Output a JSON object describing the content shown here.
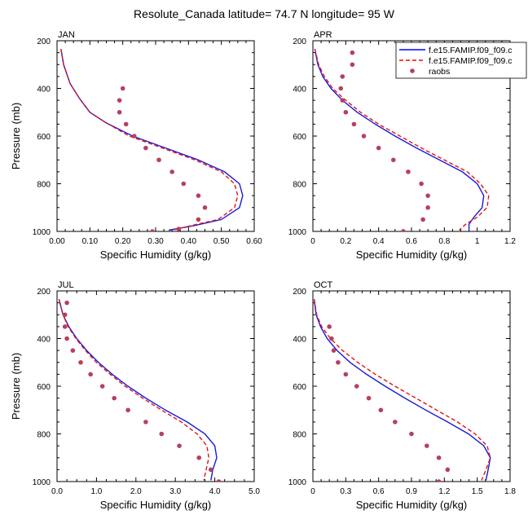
{
  "figure_title": "Resolute_Canada  latitude= 74.7 N longitude= 95 W",
  "legend": {
    "entries": [
      {
        "label": "f.e15.FAMIP.f09_f09.c",
        "style": "solid",
        "color": "#0000ff"
      },
      {
        "label": "f.e15.FAMIP.f09_f09.c",
        "style": "dashed",
        "color": "#ff0000"
      },
      {
        "label": "raobs",
        "style": "marker",
        "color": "#b5405f"
      }
    ]
  },
  "colors": {
    "model_solid": "#1a1adb",
    "model_dashed": "#e01515",
    "raobs": "#b5405f"
  },
  "chart_data": [
    {
      "type": "line",
      "panel": "JAN",
      "title": "JAN",
      "xlabel": "Specific Humidity (g/kg)",
      "ylabel": "Pressure (mb)",
      "xlim": [
        0,
        0.6
      ],
      "ylim": [
        1000,
        200
      ],
      "xticks": [
        0,
        0.1,
        0.2,
        0.3,
        0.4,
        0.5,
        0.6
      ],
      "xtick_labels": [
        "0.00",
        "0.10",
        "0.20",
        "0.30",
        "0.40",
        "0.50",
        "0.60"
      ],
      "yticks": [
        200,
        400,
        600,
        800,
        1000
      ],
      "ytick_labels": [
        "200",
        "400",
        "600",
        "800",
        "1000"
      ],
      "series": [
        {
          "name": "f.e15.FAMIP.f09_f09.c (solid)",
          "style": "solid",
          "x": [
            0.012,
            0.02,
            0.04,
            0.07,
            0.1,
            0.15,
            0.23,
            0.33,
            0.43,
            0.51,
            0.555,
            0.565,
            0.555,
            0.5,
            0.42,
            0.34
          ],
          "y": [
            235,
            300,
            380,
            445,
            500,
            545,
            600,
            650,
            700,
            750,
            800,
            850,
            900,
            950,
            975,
            995
          ]
        },
        {
          "name": "f.e15.FAMIP.f09_f09.c (dashed)",
          "style": "dashed",
          "x": [
            0.012,
            0.02,
            0.04,
            0.07,
            0.1,
            0.15,
            0.22,
            0.32,
            0.42,
            0.5,
            0.54,
            0.55,
            0.54,
            0.49,
            0.41,
            0.35
          ],
          "y": [
            235,
            300,
            380,
            445,
            500,
            545,
            600,
            650,
            700,
            750,
            800,
            850,
            900,
            950,
            975,
            995
          ]
        },
        {
          "name": "raobs",
          "style": "marker",
          "x": [
            0.2,
            0.19,
            0.19,
            0.21,
            0.235,
            0.27,
            0.31,
            0.35,
            0.385,
            0.43,
            0.45,
            0.43,
            0.37,
            0.29
          ],
          "y": [
            400,
            450,
            500,
            550,
            600,
            650,
            700,
            750,
            800,
            850,
            900,
            950,
            990,
            1000
          ]
        }
      ]
    },
    {
      "type": "line",
      "panel": "APR",
      "title": "APR",
      "xlabel": "Specific Humidity (g/kg)",
      "ylabel": "",
      "xlim": [
        0,
        1.2
      ],
      "ylim": [
        1000,
        200
      ],
      "xticks": [
        0,
        0.2,
        0.4,
        0.6,
        0.8,
        1.0,
        1.2
      ],
      "xtick_labels": [
        "0",
        "0.2",
        "0.4",
        "0.6",
        "0.8",
        "1",
        "1.2"
      ],
      "yticks": [
        200,
        400,
        600,
        800,
        1000
      ],
      "ytick_labels": [
        "200",
        "400",
        "600",
        "800",
        "1000"
      ],
      "series": [
        {
          "name": "f.e15.FAMIP.f09_f09.c (solid)",
          "style": "solid",
          "x": [
            0.012,
            0.03,
            0.06,
            0.11,
            0.18,
            0.27,
            0.38,
            0.5,
            0.63,
            0.77,
            0.91,
            1.0,
            1.04,
            1.03,
            0.98,
            0.95,
            0.95
          ],
          "y": [
            235,
            300,
            350,
            400,
            450,
            500,
            550,
            600,
            650,
            700,
            750,
            800,
            850,
            900,
            940,
            970,
            995
          ]
        },
        {
          "name": "f.e15.FAMIP.f09_f09.c (dashed)",
          "style": "dashed",
          "x": [
            0.012,
            0.035,
            0.07,
            0.12,
            0.2,
            0.29,
            0.4,
            0.53,
            0.66,
            0.8,
            0.94,
            1.02,
            1.07,
            1.06,
            1.0,
            0.93,
            0.89
          ],
          "y": [
            235,
            300,
            350,
            400,
            450,
            500,
            550,
            600,
            650,
            700,
            750,
            800,
            850,
            900,
            940,
            970,
            995
          ]
        },
        {
          "name": "raobs",
          "style": "marker",
          "x": [
            0.24,
            0.24,
            0.18,
            0.17,
            0.18,
            0.2,
            0.25,
            0.31,
            0.4,
            0.49,
            0.58,
            0.66,
            0.7,
            0.7,
            0.67,
            0.55
          ],
          "y": [
            250,
            300,
            350,
            400,
            450,
            500,
            550,
            600,
            650,
            700,
            750,
            800,
            850,
            900,
            950,
            1000
          ]
        }
      ]
    },
    {
      "type": "line",
      "panel": "JUL",
      "title": "JUL",
      "xlabel": "Specific Humidity (g/kg)",
      "ylabel": "Pressure (mb)",
      "xlim": [
        0,
        5.0
      ],
      "ylim": [
        1000,
        200
      ],
      "xticks": [
        0,
        1,
        2,
        3,
        4,
        5
      ],
      "xtick_labels": [
        "0.0",
        "1.0",
        "2.0",
        "3.0",
        "4.0",
        "5.0"
      ],
      "yticks": [
        200,
        400,
        600,
        800,
        1000
      ],
      "ytick_labels": [
        "200",
        "400",
        "600",
        "800",
        "1000"
      ],
      "series": [
        {
          "name": "f.e15.FAMIP.f09_f09.c (solid)",
          "style": "solid",
          "x": [
            0.05,
            0.15,
            0.3,
            0.5,
            0.75,
            1.05,
            1.4,
            1.8,
            2.25,
            2.75,
            3.3,
            3.75,
            4.0,
            4.05,
            3.95,
            3.9
          ],
          "y": [
            235,
            300,
            350,
            400,
            450,
            500,
            550,
            600,
            650,
            700,
            750,
            800,
            850,
            900,
            950,
            995
          ]
        },
        {
          "name": "f.e15.FAMIP.f09_f09.c (dashed)",
          "style": "dashed",
          "x": [
            0.05,
            0.15,
            0.28,
            0.48,
            0.72,
            1.0,
            1.35,
            1.73,
            2.17,
            2.65,
            3.15,
            3.55,
            3.8,
            3.85,
            3.78,
            3.72
          ],
          "y": [
            235,
            300,
            350,
            400,
            450,
            500,
            550,
            600,
            650,
            700,
            750,
            800,
            850,
            900,
            950,
            995
          ]
        },
        {
          "name": "raobs",
          "style": "marker",
          "x": [
            0.25,
            0.2,
            0.2,
            0.25,
            0.4,
            0.6,
            0.85,
            1.15,
            1.45,
            1.8,
            2.25,
            2.65,
            3.1,
            3.6,
            3.9,
            4.1
          ],
          "y": [
            250,
            300,
            350,
            400,
            450,
            500,
            550,
            600,
            650,
            700,
            750,
            800,
            850,
            900,
            950,
            1000
          ]
        }
      ]
    },
    {
      "type": "line",
      "panel": "OCT",
      "title": "OCT",
      "xlabel": "Specific Humidity (g/kg)",
      "ylabel": "",
      "xlim": [
        0,
        1.8
      ],
      "ylim": [
        1000,
        200
      ],
      "xticks": [
        0,
        0.3,
        0.6,
        0.9,
        1.2,
        1.5,
        1.8
      ],
      "xtick_labels": [
        "0",
        "0.3",
        "0.6",
        "0.9",
        "1.2",
        "1.5",
        "1.8"
      ],
      "yticks": [
        200,
        400,
        600,
        800,
        1000
      ],
      "ytick_labels": [
        "200",
        "400",
        "600",
        "800",
        "1000"
      ],
      "series": [
        {
          "name": "f.e15.FAMIP.f09_f09.c (solid)",
          "style": "solid",
          "x": [
            0.012,
            0.03,
            0.07,
            0.13,
            0.22,
            0.34,
            0.49,
            0.66,
            0.84,
            1.03,
            1.23,
            1.42,
            1.56,
            1.62,
            1.6,
            1.58
          ],
          "y": [
            235,
            300,
            350,
            400,
            450,
            500,
            550,
            600,
            650,
            700,
            750,
            800,
            850,
            900,
            950,
            995
          ]
        },
        {
          "name": "f.e15.FAMIP.f09_f09.c (dashed)",
          "style": "dashed",
          "x": [
            0.012,
            0.035,
            0.08,
            0.16,
            0.27,
            0.41,
            0.57,
            0.75,
            0.94,
            1.13,
            1.32,
            1.48,
            1.59,
            1.62,
            1.58,
            1.54
          ],
          "y": [
            235,
            300,
            350,
            400,
            450,
            500,
            550,
            600,
            650,
            700,
            750,
            800,
            850,
            900,
            950,
            995
          ]
        },
        {
          "name": "raobs",
          "style": "marker",
          "x": [
            0.15,
            0.17,
            0.19,
            0.23,
            0.3,
            0.4,
            0.51,
            0.62,
            0.75,
            0.9,
            1.04,
            1.15,
            1.23,
            1.15
          ],
          "y": [
            350,
            400,
            450,
            500,
            550,
            600,
            650,
            700,
            750,
            800,
            850,
            900,
            950,
            1000
          ]
        }
      ]
    }
  ]
}
